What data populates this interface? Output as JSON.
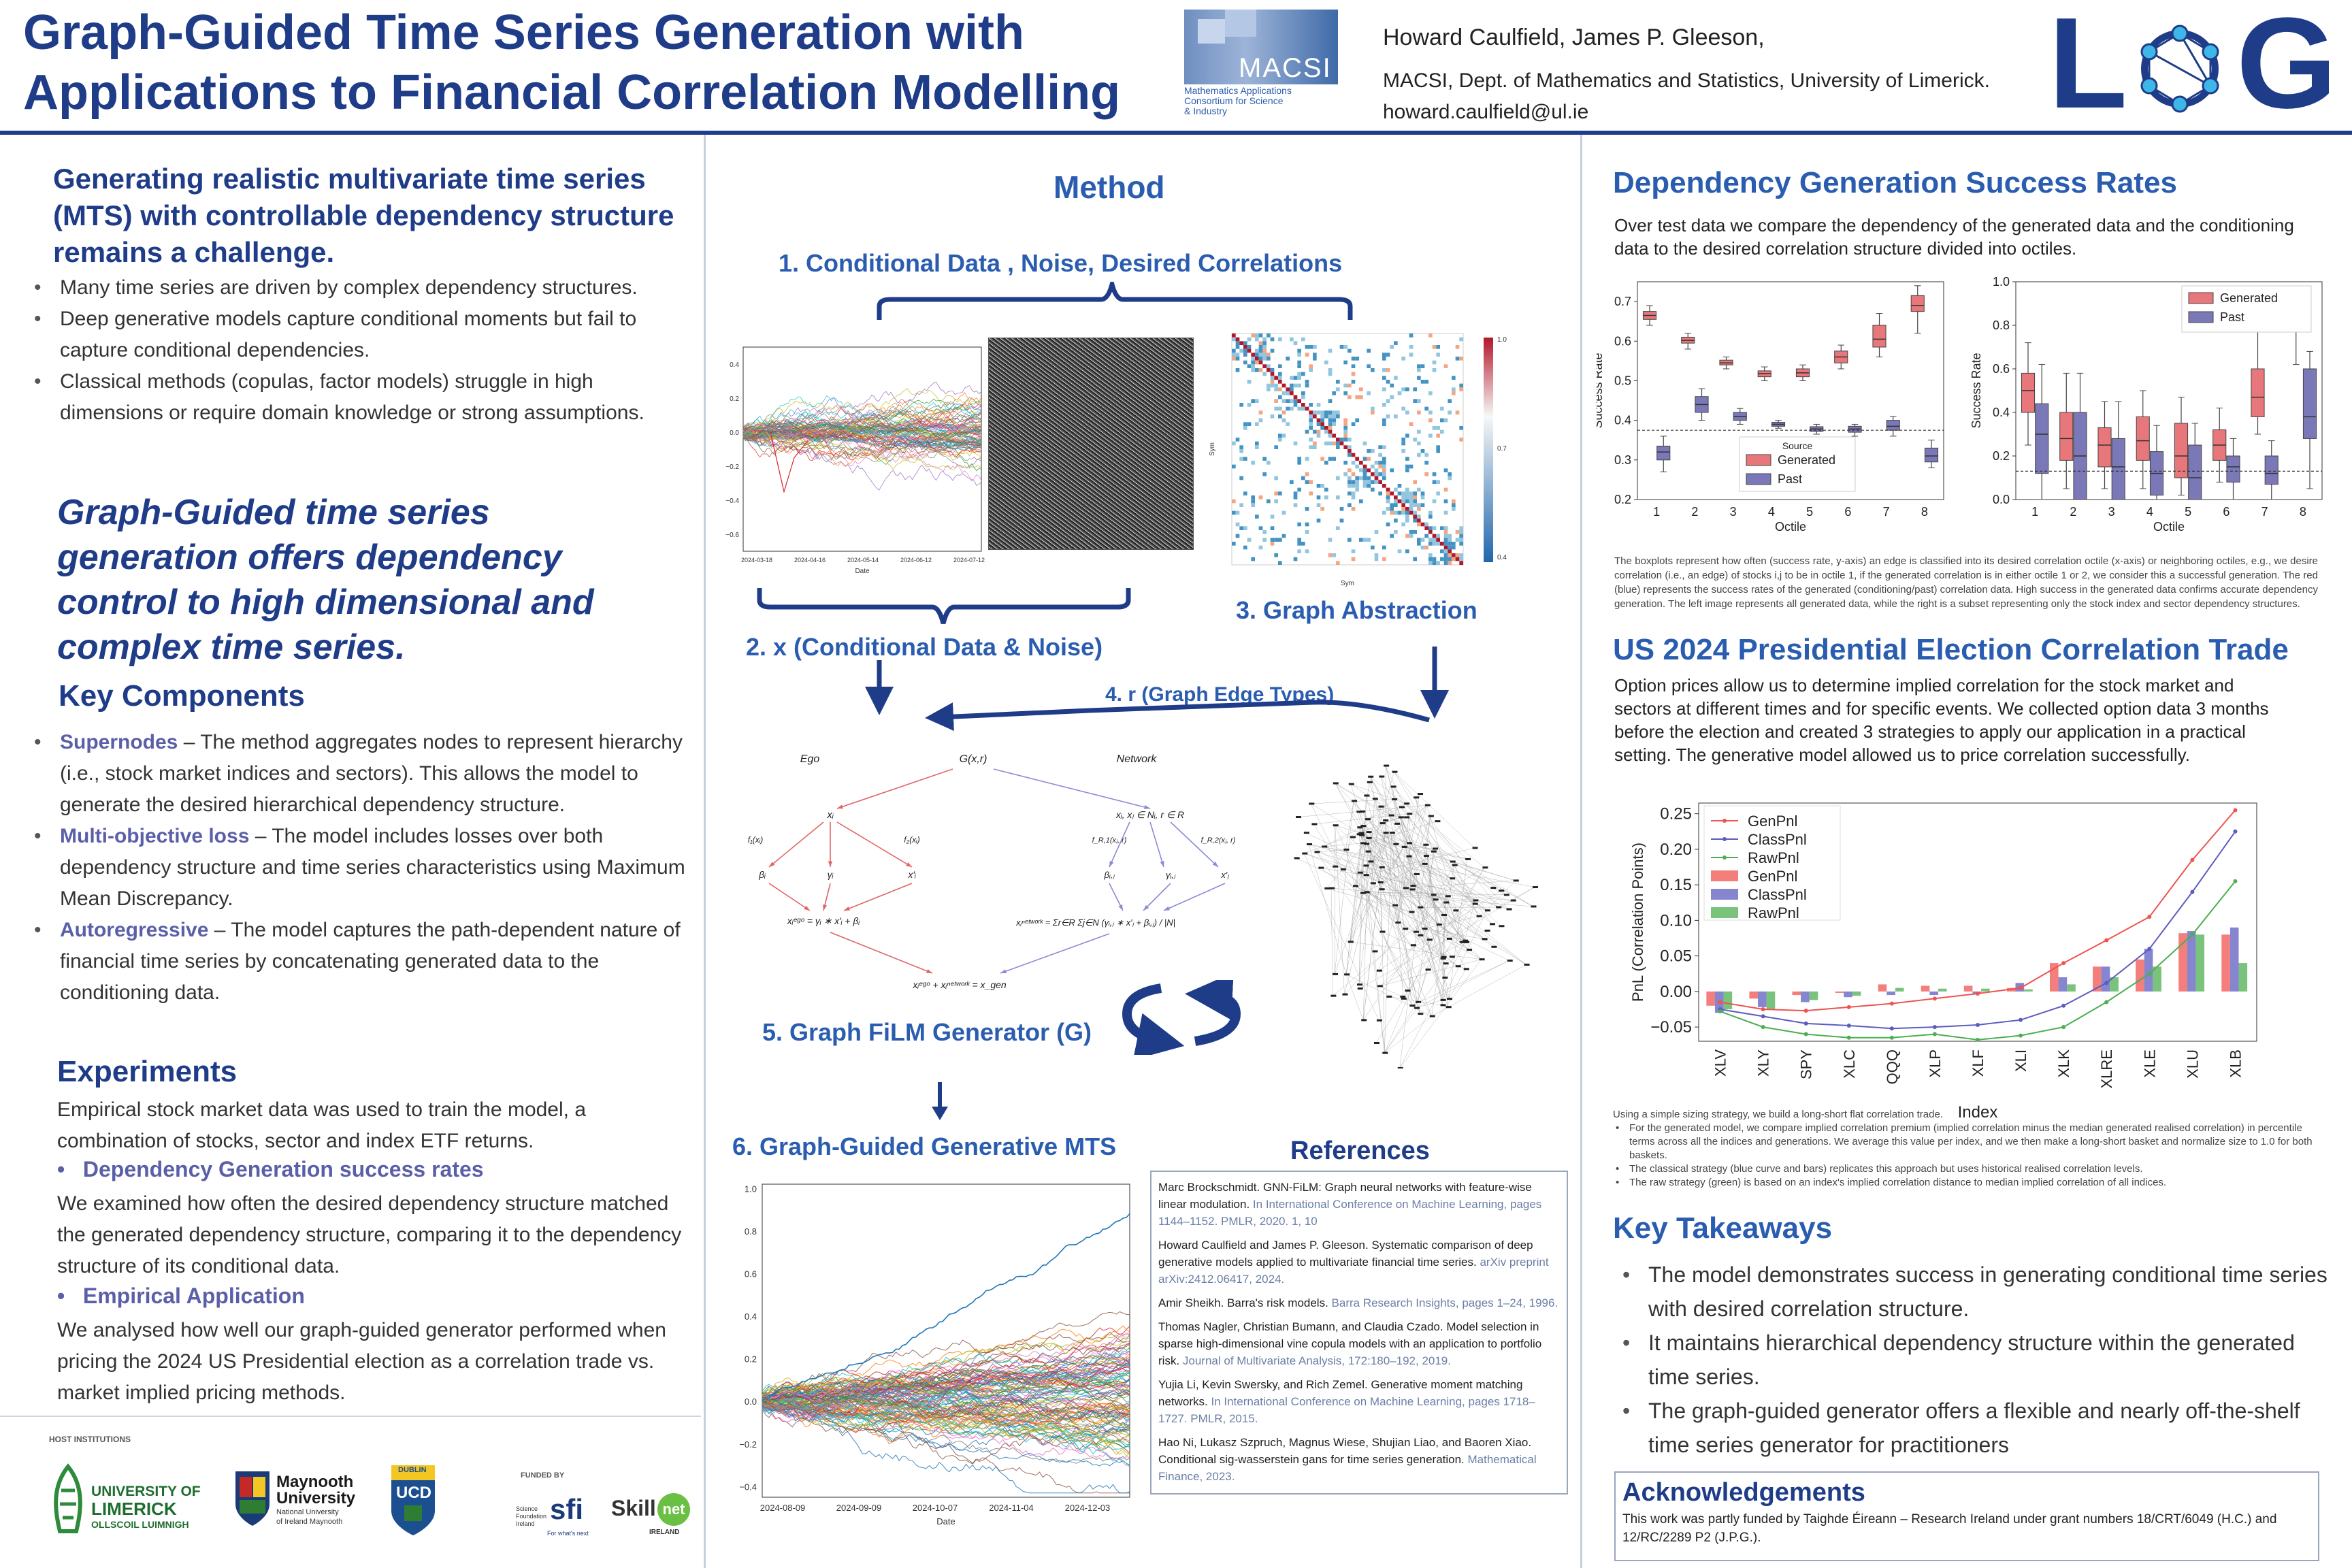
{
  "header": {
    "title_line1": "Graph-Guided Time Series Generation with",
    "title_line2": "Applications to Financial Correlation Modelling",
    "macsi_logo_text": "MACSI",
    "macsi_sub1": "Mathematics Applications",
    "macsi_sub2": "Consortium  for  Science",
    "macsi_sub3": "& Industry",
    "authors": "Howard Caulfield, James P. Gleeson,",
    "affiliation": "MACSI, Dept. of Mathematics and Statistics, University of Limerick.",
    "email": "howard.caulfield@ul.ie",
    "log_logo_left": "L",
    "log_logo_right": "G"
  },
  "left": {
    "intro": "Generating realistic multivariate time series (MTS) with controllable dependency structure remains a challenge.",
    "bullets": [
      "Many time series are driven by complex dependency structures.",
      "Deep generative models capture conditional moments but fail to capture conditional dependencies.",
      "Classical methods (copulas, factor models) struggle in high dimensions or require domain knowledge or strong assumptions."
    ],
    "highlight": "Graph-Guided time series generation offers dependency control to high dimensional and complex time series.",
    "key_components_title": "Key Components",
    "components": [
      {
        "name": "Supernodes",
        "text": " – The method aggregates nodes to represent hierarchy (i.e., stock market indices and sectors). This allows the model to generate the desired hierarchical dependency structure."
      },
      {
        "name": "Multi-objective loss",
        "text": " – The model includes losses over both dependency structure and time series characteristics using Maximum Mean Discrepancy."
      },
      {
        "name": "Autoregressive",
        "text": " – The model captures the path-dependent nature of financial time series by concatenating generated data to the conditioning data."
      }
    ],
    "experiments_title": "Experiments",
    "experiments_text": "Empirical stock market data was used to train the model, a combination of stocks, sector and index ETF returns.",
    "exp1_title": "Dependency Generation success rates",
    "exp1_text": "We examined how often the desired dependency structure matched the generated dependency structure, comparing it to the dependency structure of its conditional data.",
    "exp2_title": "Empirical Application",
    "exp2_text": "We analysed how well our graph-guided generator performed when pricing the 2024 US Presidential election as a correlation trade vs. market implied pricing methods.",
    "host_label": "HOST INSTITUTIONS",
    "funded_label": "FUNDED BY",
    "ul_name1": "UNIVERSITY OF",
    "ul_name2": "LIMERICK",
    "ul_name3": "OLLSCOIL LUIMNIGH",
    "may_name1": "Maynooth",
    "may_name2": "University",
    "may_name3": "National University",
    "may_name4": "of Ireland Maynooth",
    "ucd_name": "UCD",
    "ucd_sub": "DUBLIN",
    "sfi_line1": "Science",
    "sfi_line2": "Foundation",
    "sfi_line3": "Ireland",
    "sfi_mark": "sfi",
    "sfi_tag": "For what's next",
    "skillnet1": "Skill",
    "skillnet2": "net",
    "skillnet3": "IRELAND"
  },
  "method": {
    "title": "Method",
    "step1": "1.  Conditional Data , Noise, Desired Correlations",
    "step2": "2.  x (Conditional Data & Noise)",
    "step3": "3.    Graph Abstraction",
    "step4": "4.       r (Graph Edge Types)",
    "step5": "5.  Graph FiLM Generator (G)",
    "step6": "6.  Graph-Guided Generative MTS",
    "ts1_yticks": [
      "0.4",
      "0.2",
      "0.0",
      "−0.2",
      "−0.4",
      "−0.6"
    ],
    "ts1_xticks": [
      "2024-03-18",
      "2024-04-16",
      "2024-05-14",
      "2024-06-12",
      "2024-07-12"
    ],
    "ts1_xlabel": "Date",
    "heat_ylabel": "Sym",
    "heat_xlabel": "Sym",
    "heat_cbar": [
      "1.0",
      "0.7",
      "0.4"
    ],
    "diag_ego": "Ego",
    "diag_network": "Network",
    "diag_g": "G(x,r)",
    "diag_xi": "xᵢ",
    "diag_f1": "f₁(xᵢ)",
    "diag_f2": "f₂(xᵢ)",
    "diag_beta": "βᵢ",
    "diag_gamma": "γᵢ",
    "diag_xi_p": "x′ᵢ",
    "diag_ego_eq": "xᵢᵉᵍᵒ = γᵢ ∗ x′ᵢ + βᵢ",
    "diag_net_top": "xᵢ, xⱼ ∈ Nᵢ, r ∈ R",
    "diag_fr1": "f_R,1(xⱼ, r)",
    "diag_fr2": "f_R,2(xⱼ, r)",
    "diag_bij": "βᵢ,ⱼ",
    "diag_gij": "γᵢ,ⱼ",
    "diag_xj_p": "x′ⱼ",
    "diag_net_eq": "xᵢⁿᵉᵗʷᵒʳᵏ = Σr∈R Σj∈N (γᵢ,ⱼ ∗ x′ⱼ + βᵢ,ⱼ) / |N|",
    "diag_gen_eq": "xᵢᵉᵍᵒ + xᵢⁿᵉᵗʷᵒʳᵏ = x_gen",
    "ts2_yticks": [
      "1.0",
      "0.8",
      "0.6",
      "0.4",
      "0.2",
      "0.0",
      "−0.2",
      "−0.4"
    ],
    "ts2_xticks": [
      "2024-08-09",
      "2024-09-09",
      "2024-10-07",
      "2024-11-04",
      "2024-12-03"
    ],
    "ts2_xlabel": "Date"
  },
  "references": {
    "title": "References",
    "items": [
      {
        "text": "Marc Brockschmidt. GNN-FiLM: Graph neural networks with feature-wise linear modulation.",
        "venue": " In International Conference on Machine Learning, pages 1144–1152. PMLR, 2020. 1, 10"
      },
      {
        "text": "Howard Caulfield and James P. Gleeson. Systematic comparison of deep generative models applied to multivariate financial time series.",
        "venue": " arXiv preprint arXiv:2412.06417, 2024."
      },
      {
        "text": "Amir Sheikh. Barra's risk models.",
        "venue": " Barra Research Insights, pages 1–24, 1996."
      },
      {
        "text": "Thomas Nagler, Christian Bumann, and Claudia Czado. Model selection in sparse high-dimensional vine copula models with an application to portfolio risk.",
        "venue": " Journal of Multivariate Analysis, 172:180–192, 2019."
      },
      {
        "text": "Yujia Li, Kevin Swersky, and Rich Zemel. Generative moment matching networks.",
        "venue": " In International Conference on Machine Learning, pages 1718–1727. PMLR, 2015."
      },
      {
        "text": "Hao Ni, Lukasz Szpruch, Magnus Wiese, Shujian Liao, and Baoren Xiao. Conditional sig-wasserstein gans for time series generation.",
        "venue": " Mathematical Finance, 2023."
      }
    ]
  },
  "right": {
    "dep_title": "Dependency Generation Success Rates",
    "dep_text": "Over test data we compare the dependency of the generated data and the conditioning data to the desired correlation structure divided into octiles.",
    "box_caption": "The boxplots represent how often (success rate, y-axis) an edge is classified into its desired correlation octile (x-axis) or neighboring octiles, e.g., we desire correlation (i.e., an edge) of stocks i,j to be in octile 1, if the generated correlation is in either octile 1 or 2, we consider this a successful generation. The red (blue) represents the success rates of the generated (conditioning/past) correlation data. High success in the generated data confirms accurate dependency generation. The left image represents all generated data, while the right is a subset representing only the stock index and sector dependency structures.",
    "election_title": "US 2024 Presidential Election Correlation Trade",
    "election_text": "Option prices allow us to determine implied correlation for the stock market and sectors at different times and for specific events. We collected option data 3 months before the election and created 3 strategies to apply our application in a practical setting. The generative model allowed us to price correlation successfully.",
    "pnl_notes_intro": "Using a simple sizing strategy, we build a long-short flat correlation trade.",
    "pnl_notes": [
      "For the generated model, we compare implied correlation premium (implied correlation minus the median generated realised correlation) in percentile terms across all the indices and generations. We average this value per index, and we then make a long-short basket and normalize size to 1.0 for both baskets.",
      "The classical strategy (blue curve and bars) replicates this approach but uses historical realised correlation levels.",
      "The raw strategy (green) is based on an index's implied correlation distance to median implied correlation of all indices."
    ],
    "takeaways_title": "Key Takeaways",
    "takeaways": [
      "The model demonstrates success in generating conditional time series with desired correlation structure.",
      "It maintains hierarchical dependency structure within the generated time series.",
      "The graph-guided generator offers a flexible and nearly off-the-shelf time series generator for practitioners"
    ],
    "ack_title": "Acknowledgements",
    "ack_text": "This work was partly funded by Taighde Éireann – Research Ireland under grant numbers 18/CRT/6049 (H.C.) and 12/RC/2289 P2 (J.P.G.)."
  },
  "colors": {
    "navy": "#1f3c88",
    "generated": "#e8777b",
    "past": "#7b78b8",
    "gen_line": "#ef5350",
    "class_line": "#5c5cc0",
    "raw_line": "#4caf50"
  },
  "chart_data": [
    {
      "type": "boxplot",
      "title": "",
      "xlabel": "Octile",
      "ylabel": "Success Rate",
      "categories": [
        "1",
        "2",
        "3",
        "4",
        "5",
        "6",
        "7",
        "8"
      ],
      "ylim": [
        0.2,
        0.75
      ],
      "yticks": [
        "0.2",
        "0.3",
        "0.4",
        "0.5",
        "0.6",
        "0.7"
      ],
      "reference_line": 0.375,
      "legend_title": "Source",
      "legend_position": "bottom-center",
      "series": [
        {
          "name": "Generated",
          "boxes": [
            {
              "q1": 0.655,
              "med": 0.665,
              "q3": 0.675,
              "lo": 0.64,
              "hi": 0.69
            },
            {
              "q1": 0.595,
              "med": 0.602,
              "q3": 0.61,
              "lo": 0.58,
              "hi": 0.62
            },
            {
              "q1": 0.54,
              "med": 0.545,
              "q3": 0.552,
              "lo": 0.53,
              "hi": 0.56
            },
            {
              "q1": 0.51,
              "med": 0.518,
              "q3": 0.525,
              "lo": 0.5,
              "hi": 0.535
            },
            {
              "q1": 0.51,
              "med": 0.52,
              "q3": 0.53,
              "lo": 0.5,
              "hi": 0.54
            },
            {
              "q1": 0.545,
              "med": 0.56,
              "q3": 0.575,
              "lo": 0.53,
              "hi": 0.59
            },
            {
              "q1": 0.585,
              "med": 0.605,
              "q3": 0.64,
              "lo": 0.56,
              "hi": 0.67
            },
            {
              "q1": 0.675,
              "med": 0.69,
              "q3": 0.715,
              "lo": 0.62,
              "hi": 0.74
            }
          ]
        },
        {
          "name": "Past",
          "boxes": [
            {
              "q1": 0.3,
              "med": 0.32,
              "q3": 0.335,
              "lo": 0.27,
              "hi": 0.36
            },
            {
              "q1": 0.42,
              "med": 0.44,
              "q3": 0.46,
              "lo": 0.4,
              "hi": 0.48
            },
            {
              "q1": 0.4,
              "med": 0.41,
              "q3": 0.42,
              "lo": 0.39,
              "hi": 0.43
            },
            {
              "q1": 0.385,
              "med": 0.39,
              "q3": 0.395,
              "lo": 0.38,
              "hi": 0.4
            },
            {
              "q1": 0.372,
              "med": 0.378,
              "q3": 0.384,
              "lo": 0.365,
              "hi": 0.39
            },
            {
              "q1": 0.37,
              "med": 0.378,
              "q3": 0.385,
              "lo": 0.36,
              "hi": 0.39
            },
            {
              "q1": 0.375,
              "med": 0.385,
              "q3": 0.4,
              "lo": 0.36,
              "hi": 0.41
            },
            {
              "q1": 0.295,
              "med": 0.31,
              "q3": 0.33,
              "lo": 0.28,
              "hi": 0.35
            }
          ]
        }
      ]
    },
    {
      "type": "boxplot",
      "title": "",
      "xlabel": "Octile",
      "ylabel": "Success Rate",
      "categories": [
        "1",
        "2",
        "3",
        "4",
        "5",
        "6",
        "7",
        "8"
      ],
      "ylim": [
        0.0,
        1.0
      ],
      "yticks": [
        "0.0",
        "0.2",
        "0.4",
        "0.6",
        "0.8",
        "1.0"
      ],
      "reference_line": 0.13,
      "legend_position": "top-right",
      "series": [
        {
          "name": "Generated",
          "boxes": [
            {
              "q1": 0.4,
              "med": 0.5,
              "q3": 0.58,
              "lo": 0.25,
              "hi": 0.72
            },
            {
              "q1": 0.18,
              "med": 0.28,
              "q3": 0.4,
              "lo": 0.05,
              "hi": 0.58
            },
            {
              "q1": 0.15,
              "med": 0.25,
              "q3": 0.33,
              "lo": 0.05,
              "hi": 0.45
            },
            {
              "q1": 0.18,
              "med": 0.27,
              "q3": 0.38,
              "lo": 0.05,
              "hi": 0.5
            },
            {
              "q1": 0.1,
              "med": 0.2,
              "q3": 0.35,
              "lo": 0.02,
              "hi": 0.47
            },
            {
              "q1": 0.18,
              "med": 0.25,
              "q3": 0.32,
              "lo": 0.08,
              "hi": 0.42
            },
            {
              "q1": 0.38,
              "med": 0.47,
              "q3": 0.6,
              "lo": 0.3,
              "hi": 0.85
            },
            {
              "q1": 0.77,
              "med": 0.84,
              "q3": 0.9,
              "lo": 0.62,
              "hi": 0.98
            }
          ]
        },
        {
          "name": "Past",
          "boxes": [
            {
              "q1": 0.12,
              "med": 0.3,
              "q3": 0.44,
              "lo": 0.0,
              "hi": 0.62
            },
            {
              "q1": 0.0,
              "med": 0.2,
              "q3": 0.4,
              "lo": 0.0,
              "hi": 0.58
            },
            {
              "q1": 0.0,
              "med": 0.15,
              "q3": 0.28,
              "lo": 0.0,
              "hi": 0.45
            },
            {
              "q1": 0.02,
              "med": 0.12,
              "q3": 0.22,
              "lo": 0.0,
              "hi": 0.34
            },
            {
              "q1": 0.0,
              "med": 0.1,
              "q3": 0.25,
              "lo": 0.0,
              "hi": 0.35
            },
            {
              "q1": 0.08,
              "med": 0.15,
              "q3": 0.2,
              "lo": 0.0,
              "hi": 0.28
            },
            {
              "q1": 0.07,
              "med": 0.12,
              "q3": 0.2,
              "lo": 0.0,
              "hi": 0.27
            },
            {
              "q1": 0.28,
              "med": 0.38,
              "q3": 0.6,
              "lo": 0.05,
              "hi": 0.68
            }
          ]
        }
      ]
    },
    {
      "type": "bar+line",
      "xlabel": "Index",
      "ylabel": "PnL (Correlation Points)",
      "categories": [
        "XLV",
        "XLY",
        "SPY",
        "XLC",
        "QQQ",
        "XLP",
        "XLF",
        "XLI",
        "XLK",
        "XLRE",
        "XLE",
        "XLU",
        "XLB"
      ],
      "ylim": [
        -0.07,
        0.265
      ],
      "yticks": [
        "−0.05",
        "0.00",
        "0.05",
        "0.10",
        "0.15",
        "0.20",
        "0.25"
      ],
      "legend_position": "top-left",
      "series": [
        {
          "name": "GenPnl",
          "kind": "line",
          "values": [
            -0.015,
            -0.025,
            -0.027,
            -0.022,
            -0.017,
            -0.01,
            -0.003,
            0.005,
            0.04,
            0.072,
            0.105,
            0.185,
            0.255
          ]
        },
        {
          "name": "ClassPnl",
          "kind": "line",
          "values": [
            -0.025,
            -0.035,
            -0.045,
            -0.048,
            -0.052,
            -0.05,
            -0.047,
            -0.04,
            -0.02,
            0.012,
            0.06,
            0.14,
            0.225
          ]
        },
        {
          "name": "RawPnl",
          "kind": "line",
          "values": [
            -0.028,
            -0.05,
            -0.06,
            -0.065,
            -0.065,
            -0.06,
            -0.068,
            -0.062,
            -0.05,
            -0.015,
            0.025,
            0.08,
            0.155
          ]
        },
        {
          "name": "GenPnl",
          "kind": "bar",
          "values": [
            -0.02,
            -0.01,
            -0.005,
            -0.002,
            0.01,
            0.008,
            0.008,
            0.005,
            0.04,
            0.035,
            0.045,
            0.082,
            0.08
          ]
        },
        {
          "name": "ClassPnl",
          "kind": "bar",
          "values": [
            -0.03,
            -0.022,
            -0.015,
            -0.008,
            -0.005,
            -0.005,
            -0.003,
            0.012,
            0.02,
            0.035,
            0.06,
            0.085,
            0.09
          ]
        },
        {
          "name": "RawPnl",
          "kind": "bar",
          "values": [
            -0.025,
            -0.025,
            -0.012,
            -0.006,
            0.005,
            0.004,
            0.004,
            0.003,
            0.01,
            0.02,
            0.035,
            0.08,
            0.04
          ]
        }
      ]
    }
  ]
}
